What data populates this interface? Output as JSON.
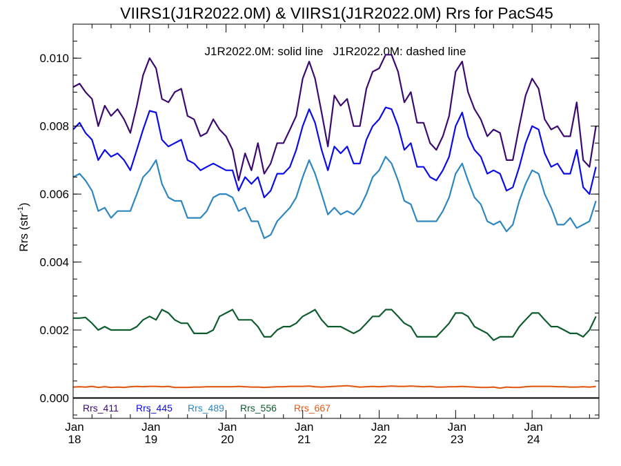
{
  "chart_data": {
    "type": "line",
    "title": "VIIRS1(J1R2022.0M) & VIIRS1(J1R2022.0M)  Rrs for PacS45",
    "annotation": "J1R2022.0M: solid line   J1R2022.0M: dashed line",
    "ylabel": "Rrs (str",
    "ylabel_sup": "-1",
    "ylabel_close": ")",
    "xlim": [
      "2018-01-01",
      "2024-11-15"
    ],
    "ylim": [
      -0.0006,
      0.011
    ],
    "x_ticks": [
      {
        "date": "2018-01-01",
        "month": "Jan",
        "year": "18"
      },
      {
        "date": "2019-01-01",
        "month": "Jan",
        "year": "19"
      },
      {
        "date": "2020-01-01",
        "month": "Jan",
        "year": "20"
      },
      {
        "date": "2021-01-01",
        "month": "Jan",
        "year": "21"
      },
      {
        "date": "2022-01-01",
        "month": "Jan",
        "year": "22"
      },
      {
        "date": "2023-01-01",
        "month": "Jan",
        "year": "23"
      },
      {
        "date": "2024-01-01",
        "month": "Jan",
        "year": "24"
      }
    ],
    "y_ticks": [
      {
        "value": 0.0,
        "label": "0.000"
      },
      {
        "value": 0.002,
        "label": "0.002"
      },
      {
        "value": 0.004,
        "label": "0.004"
      },
      {
        "value": 0.006,
        "label": "0.006"
      },
      {
        "value": 0.008,
        "label": "0.008"
      },
      {
        "value": 0.01,
        "label": "0.010"
      }
    ],
    "y_minor_step": 0.0005,
    "zero_line": true,
    "grid": false,
    "legend_position": "bottom-left",
    "x": [
      "2018-01-01",
      "2018-02-01",
      "2018-03-01",
      "2018-04-01",
      "2018-05-01",
      "2018-06-01",
      "2018-07-01",
      "2018-08-01",
      "2018-09-01",
      "2018-10-01",
      "2018-11-01",
      "2018-12-01",
      "2019-01-01",
      "2019-02-01",
      "2019-03-01",
      "2019-04-01",
      "2019-05-01",
      "2019-06-01",
      "2019-07-01",
      "2019-08-01",
      "2019-09-01",
      "2019-10-01",
      "2019-11-01",
      "2019-12-01",
      "2020-01-01",
      "2020-02-01",
      "2020-03-01",
      "2020-04-01",
      "2020-05-01",
      "2020-06-01",
      "2020-07-01",
      "2020-08-01",
      "2020-09-01",
      "2020-10-01",
      "2020-11-01",
      "2020-12-01",
      "2021-01-01",
      "2021-02-01",
      "2021-03-01",
      "2021-04-01",
      "2021-05-01",
      "2021-06-01",
      "2021-07-01",
      "2021-08-01",
      "2021-09-01",
      "2021-10-01",
      "2021-11-01",
      "2021-12-01",
      "2022-01-01",
      "2022-02-01",
      "2022-03-01",
      "2022-04-01",
      "2022-05-01",
      "2022-06-01",
      "2022-07-01",
      "2022-08-01",
      "2022-09-01",
      "2022-10-01",
      "2022-11-01",
      "2022-12-01",
      "2023-01-01",
      "2023-02-01",
      "2023-03-01",
      "2023-04-01",
      "2023-05-01",
      "2023-06-01",
      "2023-07-01",
      "2023-08-01",
      "2023-09-01",
      "2023-10-01",
      "2023-11-01",
      "2023-12-01",
      "2024-01-01",
      "2024-02-01",
      "2024-03-01",
      "2024-04-01",
      "2024-05-01",
      "2024-06-01",
      "2024-07-01",
      "2024-08-01",
      "2024-09-01",
      "2024-10-01",
      "2024-11-01"
    ],
    "series": [
      {
        "name": "Rrs_411",
        "color": "#3b0a6e",
        "values": [
          0.00915,
          0.00925,
          0.009,
          0.0088,
          0.008,
          0.0086,
          0.0083,
          0.0085,
          0.0082,
          0.0078,
          0.0086,
          0.0095,
          0.01,
          0.0097,
          0.0088,
          0.0087,
          0.009,
          0.0091,
          0.0083,
          0.0082,
          0.0077,
          0.0078,
          0.0082,
          0.0079,
          0.0077,
          0.0073,
          0.0064,
          0.0072,
          0.0067,
          0.0075,
          0.0066,
          0.0069,
          0.0075,
          0.0075,
          0.0079,
          0.0083,
          0.0094,
          0.0099,
          0.0094,
          0.0084,
          0.0074,
          0.0089,
          0.0086,
          0.0088,
          0.008,
          0.008,
          0.0091,
          0.0096,
          0.0097,
          0.0101,
          0.0101,
          0.0096,
          0.0087,
          0.009,
          0.0081,
          0.0081,
          0.0075,
          0.0073,
          0.0077,
          0.0083,
          0.0096,
          0.0099,
          0.009,
          0.0085,
          0.0082,
          0.0077,
          0.0079,
          0.0078,
          0.007,
          0.007,
          0.008,
          0.0089,
          0.0094,
          0.0091,
          0.0082,
          0.0079,
          0.008,
          0.0077,
          0.0077,
          0.0087,
          0.007,
          0.0068,
          0.008
        ]
      },
      {
        "name": "Rrs_445",
        "color": "#0b0bea",
        "values": [
          0.0079,
          0.0081,
          0.0078,
          0.0076,
          0.007,
          0.0073,
          0.0071,
          0.0072,
          0.007,
          0.0067,
          0.0073,
          0.0079,
          0.00845,
          0.0084,
          0.0076,
          0.0074,
          0.0075,
          0.0076,
          0.007,
          0.0069,
          0.0067,
          0.0068,
          0.0069,
          0.0068,
          0.0067,
          0.0067,
          0.0061,
          0.0065,
          0.0063,
          0.0065,
          0.0059,
          0.0061,
          0.0066,
          0.0066,
          0.0068,
          0.0073,
          0.008,
          0.0085,
          0.0081,
          0.0073,
          0.0067,
          0.0074,
          0.0072,
          0.0074,
          0.0069,
          0.0069,
          0.0076,
          0.008,
          0.0082,
          0.00855,
          0.0085,
          0.008,
          0.0073,
          0.0075,
          0.0068,
          0.0068,
          0.0065,
          0.0064,
          0.0067,
          0.0071,
          0.008,
          0.0084,
          0.0077,
          0.0073,
          0.0071,
          0.0066,
          0.0067,
          0.0066,
          0.0061,
          0.0062,
          0.0068,
          0.0075,
          0.008,
          0.0079,
          0.0072,
          0.0068,
          0.0069,
          0.0066,
          0.0066,
          0.0073,
          0.0062,
          0.006,
          0.0068
        ]
      },
      {
        "name": "Rrs_489",
        "color": "#2e86c1",
        "values": [
          0.0065,
          0.0066,
          0.0064,
          0.0061,
          0.0055,
          0.0056,
          0.0053,
          0.0055,
          0.0055,
          0.0055,
          0.006,
          0.0065,
          0.0067,
          0.007,
          0.0063,
          0.0059,
          0.0058,
          0.0058,
          0.0053,
          0.0053,
          0.0053,
          0.0055,
          0.0059,
          0.006,
          0.006,
          0.0059,
          0.0055,
          0.0056,
          0.0052,
          0.0052,
          0.0047,
          0.0048,
          0.0052,
          0.0054,
          0.0056,
          0.0059,
          0.0065,
          0.007,
          0.0066,
          0.006,
          0.0054,
          0.0056,
          0.0054,
          0.0055,
          0.0054,
          0.0056,
          0.006,
          0.0065,
          0.0067,
          0.0071,
          0.0069,
          0.0064,
          0.0058,
          0.0057,
          0.0052,
          0.0052,
          0.0052,
          0.0052,
          0.0055,
          0.0059,
          0.0066,
          0.0069,
          0.0064,
          0.0059,
          0.0057,
          0.0052,
          0.0051,
          0.0052,
          0.0049,
          0.0051,
          0.0058,
          0.0063,
          0.0067,
          0.0066,
          0.006,
          0.0056,
          0.0051,
          0.0051,
          0.0053,
          0.005,
          0.0051,
          0.0052,
          0.0058
        ]
      },
      {
        "name": "Rrs_556",
        "color": "#0e5b2e",
        "values": [
          0.00235,
          0.00235,
          0.00237,
          0.0022,
          0.002,
          0.0021,
          0.002,
          0.002,
          0.002,
          0.002,
          0.0021,
          0.0023,
          0.0024,
          0.0023,
          0.0026,
          0.0025,
          0.0023,
          0.0022,
          0.0022,
          0.0019,
          0.0019,
          0.0019,
          0.002,
          0.0024,
          0.0025,
          0.0026,
          0.0023,
          0.0023,
          0.0023,
          0.0021,
          0.0018,
          0.0018,
          0.002,
          0.0021,
          0.0021,
          0.0022,
          0.0024,
          0.0025,
          0.0026,
          0.0023,
          0.0021,
          0.0021,
          0.0021,
          0.002,
          0.0019,
          0.002,
          0.0022,
          0.0024,
          0.0024,
          0.0026,
          0.0026,
          0.0024,
          0.0022,
          0.0021,
          0.0018,
          0.0018,
          0.0018,
          0.0018,
          0.002,
          0.0022,
          0.0025,
          0.0025,
          0.0024,
          0.0021,
          0.002,
          0.0019,
          0.0017,
          0.0018,
          0.0018,
          0.0018,
          0.0021,
          0.0023,
          0.0025,
          0.0025,
          0.0023,
          0.0021,
          0.0021,
          0.002,
          0.0019,
          0.0019,
          0.0018,
          0.002,
          0.0024
        ]
      },
      {
        "name": "Rrs_667",
        "color": "#e05a14",
        "values": [
          0.00032,
          0.00033,
          0.00032,
          0.00034,
          0.00031,
          0.00033,
          0.00031,
          0.00032,
          0.00031,
          0.00033,
          0.00034,
          0.00033,
          0.00034,
          0.00034,
          0.00033,
          0.00034,
          0.00031,
          0.00031,
          0.00031,
          0.00032,
          0.00032,
          0.00033,
          0.00033,
          0.00033,
          0.00033,
          0.00033,
          0.00034,
          0.00033,
          0.00032,
          0.00032,
          0.00031,
          0.00032,
          0.00033,
          0.00033,
          0.00034,
          0.00034,
          0.00034,
          0.00035,
          0.00033,
          0.00032,
          0.00033,
          0.00034,
          0.00035,
          0.00036,
          0.00034,
          0.00032,
          0.00033,
          0.00034,
          0.00033,
          0.00034,
          0.00035,
          0.00034,
          0.00034,
          0.00035,
          0.00034,
          0.00033,
          0.00034,
          0.00032,
          0.00032,
          0.00033,
          0.00033,
          0.00034,
          0.00033,
          0.00032,
          0.00031,
          0.00031,
          0.00032,
          0.00029,
          0.00032,
          0.00031,
          0.00031,
          0.00033,
          0.00034,
          0.00034,
          0.00034,
          0.00034,
          0.00033,
          0.00033,
          0.00032,
          0.00032,
          0.00033,
          0.00032,
          0.00034
        ]
      }
    ]
  }
}
